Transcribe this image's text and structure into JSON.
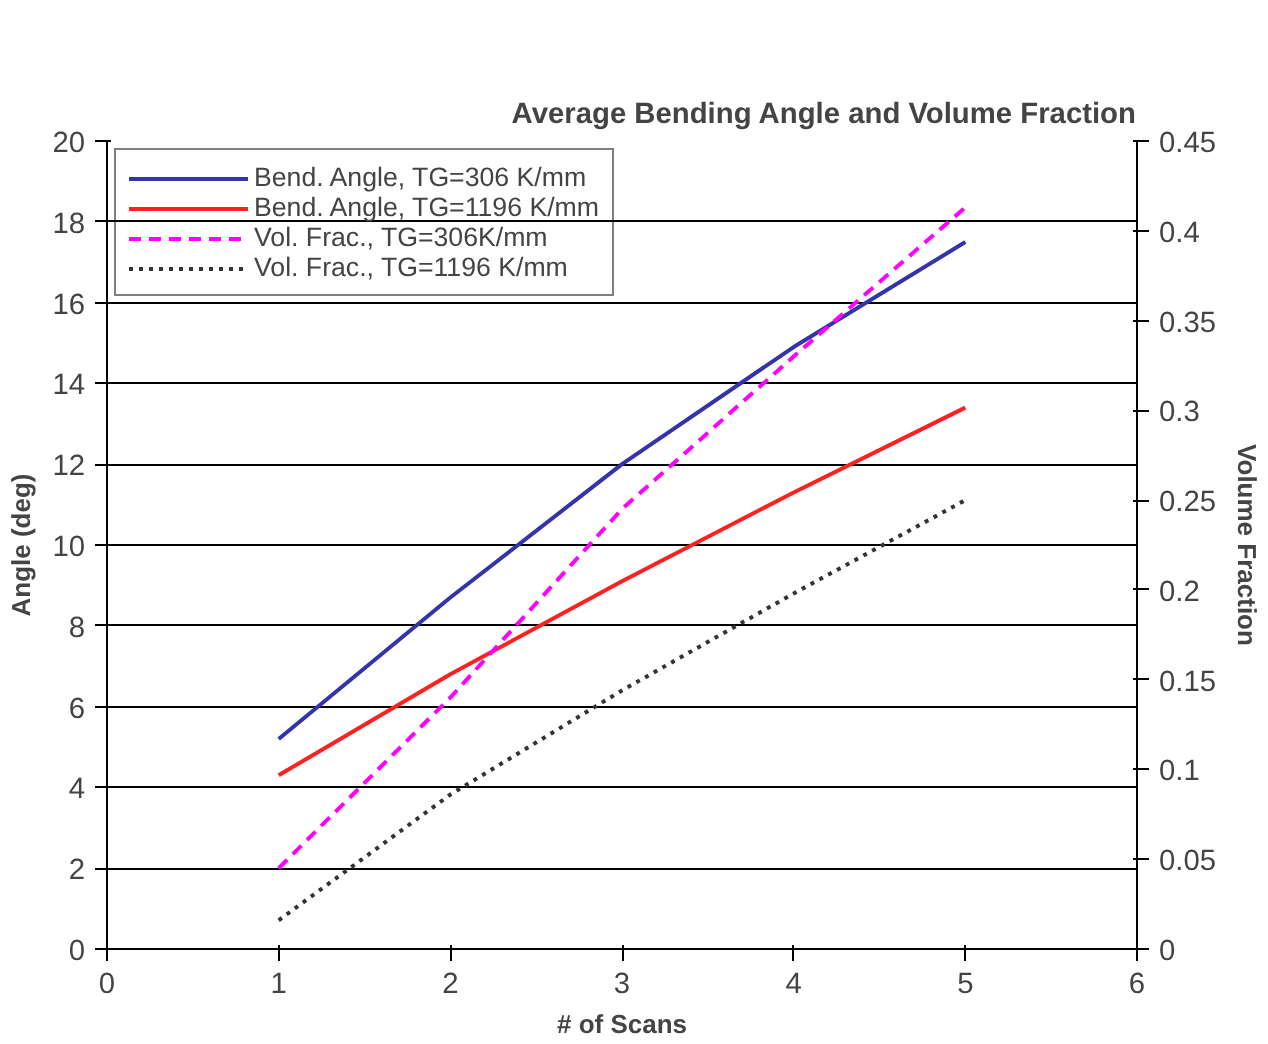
{
  "chart_data": {
    "type": "line",
    "title": "Average Bending Angle and Volume Fraction",
    "xlabel": "# of Scans",
    "ylabel": "Angle (deg)",
    "y2label": "Volume Fraction",
    "x": [
      1,
      2,
      3,
      4,
      5
    ],
    "series": [
      {
        "name": "Bend. Angle, TG=306 K/mm",
        "color": "#3333aa",
        "values": [
          5.2,
          8.7,
          12.0,
          14.9,
          17.5
        ],
        "line_style": "solid"
      },
      {
        "name": "Bend. Angle, TG=1196 K/mm",
        "color": "#ff2020",
        "values": [
          4.3,
          6.8,
          9.1,
          11.3,
          13.4
        ],
        "line_style": "solid"
      },
      {
        "name": "Vol. Frac., TG=306K/mm",
        "color": "#ff00ff",
        "values": [
          0.045,
          0.14,
          0.245,
          0.33,
          0.413
        ],
        "line_style": "dashed",
        "axis": "y2"
      },
      {
        "name": "Vol. Frac., TG=1196 K/mm",
        "color": "#333333",
        "values": [
          0.016,
          0.086,
          0.144,
          0.198,
          0.25
        ],
        "line_style": "dotted",
        "axis": "y2"
      }
    ],
    "xlim": [
      0,
      6
    ],
    "xticks": [
      0,
      1,
      2,
      3,
      4,
      5,
      6
    ],
    "ylim": [
      0,
      20
    ],
    "yticks": [
      0,
      2,
      4,
      6,
      8,
      10,
      12,
      14,
      16,
      18,
      20
    ],
    "y2lim": [
      0,
      0.45
    ],
    "y2ticks": [
      0,
      0.05,
      0.1,
      0.15,
      0.2,
      0.25,
      0.3,
      0.35,
      0.4,
      0.45
    ],
    "grid": "y",
    "legend": "top left",
    "marker": "none"
  }
}
